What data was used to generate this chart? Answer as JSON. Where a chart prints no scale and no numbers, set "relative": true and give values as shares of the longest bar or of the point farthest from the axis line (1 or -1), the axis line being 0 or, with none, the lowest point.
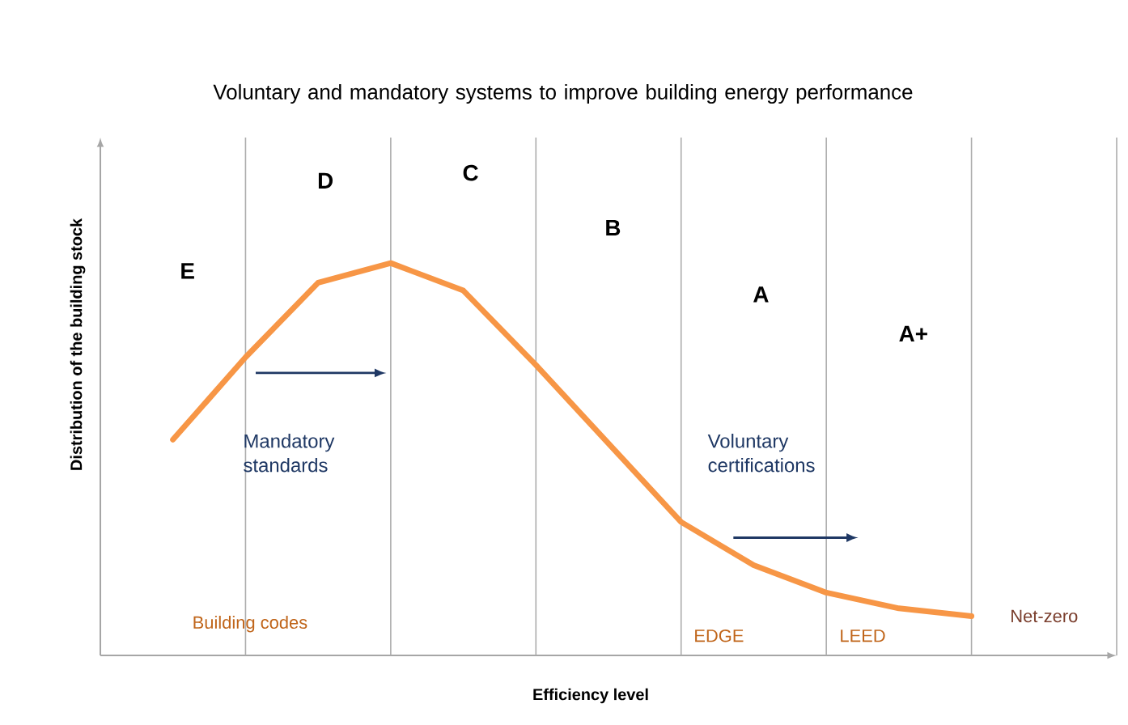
{
  "chart_data": {
    "type": "line",
    "title": "Voluntary and mandatory systems to improve building energy performance",
    "xlabel": "Efficiency level",
    "ylabel": "Distribution of the building stock",
    "relative": true,
    "grid": "x",
    "categories": [
      null,
      null,
      null,
      null,
      null,
      null,
      null,
      null,
      null,
      null,
      null,
      null
    ],
    "series": [
      {
        "color": "#f79646",
        "values": [
          0.55,
          0.76,
          0.95,
          1.0,
          0.93,
          0.74,
          0.54,
          0.34,
          0.23,
          0.16,
          0.12,
          0.1
        ]
      }
    ],
    "annotations": [
      "E",
      "D",
      "C",
      "B",
      "A",
      "A+",
      "Mandatory standards",
      "Voluntary certifications",
      "Building codes",
      "EDGE",
      "LEED",
      "Net-zero"
    ]
  }
}
